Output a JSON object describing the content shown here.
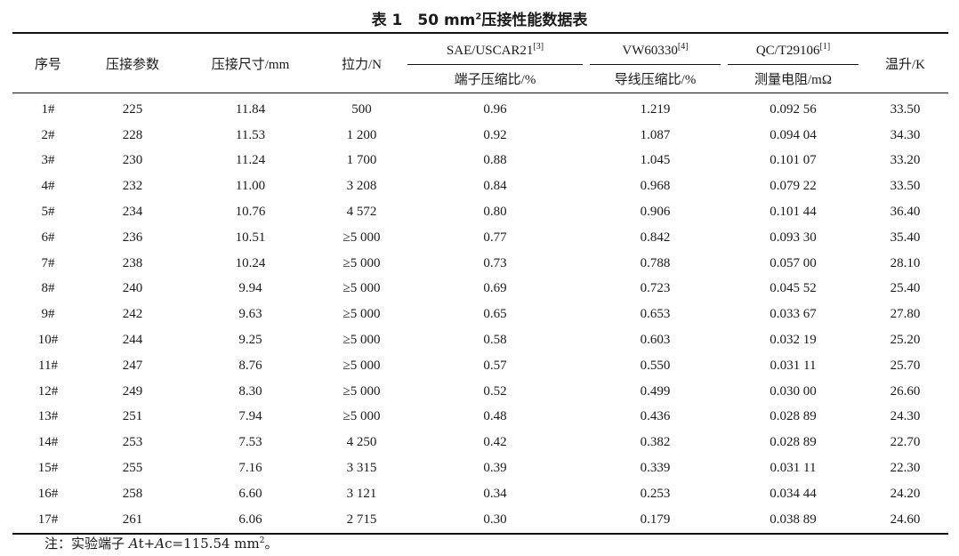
{
  "title": {
    "prefix": "表 1　50 mm",
    "sup": "2",
    "suffix": "压接性能数据表"
  },
  "headers": {
    "seq": "序号",
    "crimp_param": "压接参数",
    "crimp_size": "压接尺寸/mm",
    "tension": "拉力/N",
    "sae": {
      "name": "SAE/USCAR21",
      "ref": "[3]",
      "sub": "端子压缩比/%"
    },
    "vw": {
      "name": "VW60330",
      "ref": "[4]",
      "sub": "导线压缩比/%"
    },
    "qc": {
      "name": "QC/T29106",
      "ref": "[1]",
      "sub": "测量电阻/mΩ"
    },
    "temp": "温升/K"
  },
  "rows": [
    [
      "1#",
      "225",
      "11.84",
      "500",
      "0.96",
      "1.219",
      "0.092 56",
      "33.50"
    ],
    [
      "2#",
      "228",
      "11.53",
      "1 200",
      "0.92",
      "1.087",
      "0.094 04",
      "34.30"
    ],
    [
      "3#",
      "230",
      "11.24",
      "1 700",
      "0.88",
      "1.045",
      "0.101 07",
      "33.20"
    ],
    [
      "4#",
      "232",
      "11.00",
      "3 208",
      "0.84",
      "0.968",
      "0.079 22",
      "33.50"
    ],
    [
      "5#",
      "234",
      "10.76",
      "4 572",
      "0.80",
      "0.906",
      "0.101 44",
      "36.40"
    ],
    [
      "6#",
      "236",
      "10.51",
      "≥5 000",
      "0.77",
      "0.842",
      "0.093 30",
      "35.40"
    ],
    [
      "7#",
      "238",
      "10.24",
      "≥5 000",
      "0.73",
      "0.788",
      "0.057 00",
      "28.10"
    ],
    [
      "8#",
      "240",
      "9.94",
      "≥5 000",
      "0.69",
      "0.723",
      "0.045 52",
      "25.40"
    ],
    [
      "9#",
      "242",
      "9.63",
      "≥5 000",
      "0.65",
      "0.653",
      "0.033 67",
      "27.80"
    ],
    [
      "10#",
      "244",
      "9.25",
      "≥5 000",
      "0.58",
      "0.603",
      "0.032 19",
      "25.20"
    ],
    [
      "11#",
      "247",
      "8.76",
      "≥5 000",
      "0.57",
      "0.550",
      "0.031 11",
      "25.70"
    ],
    [
      "12#",
      "249",
      "8.30",
      "≥5 000",
      "0.52",
      "0.499",
      "0.030 00",
      "26.60"
    ],
    [
      "13#",
      "251",
      "7.94",
      "≥5 000",
      "0.48",
      "0.436",
      "0.028 89",
      "24.30"
    ],
    [
      "14#",
      "253",
      "7.53",
      "4 250",
      "0.42",
      "0.382",
      "0.028 89",
      "22.70"
    ],
    [
      "15#",
      "255",
      "7.16",
      "3 315",
      "0.39",
      "0.339",
      "0.031 11",
      "22.30"
    ],
    [
      "16#",
      "258",
      "6.60",
      "3 121",
      "0.34",
      "0.253",
      "0.034 44",
      "24.20"
    ],
    [
      "17#",
      "261",
      "6.06",
      "2 715",
      "0.30",
      "0.179",
      "0.038 89",
      "24.60"
    ]
  ],
  "note": {
    "prefix": "注：实验端子 ",
    "a1": "A",
    "t": "t+",
    "a2": "A",
    "c": "c=115.54 mm",
    "sup": "2",
    "end": "。"
  }
}
